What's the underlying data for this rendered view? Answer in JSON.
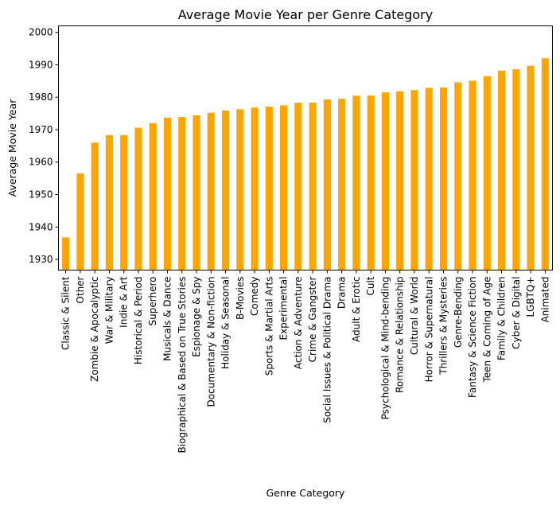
{
  "chart_data": {
    "type": "bar",
    "title": "Average Movie Year per Genre Category",
    "xlabel": "Genre Category",
    "ylabel": "Average Movie Year",
    "ylim": [
      1926.7,
      2002
    ],
    "yticks": [
      1930,
      1940,
      1950,
      1960,
      1970,
      1980,
      1990,
      2000
    ],
    "grid": false,
    "color": "#FFA500",
    "categories": [
      "Classic & Silent",
      "Other",
      "Zombie & Apocalyptic",
      "War & Military",
      "Indie & Art",
      "Historical & Period",
      "Superhero",
      "Musicals & Dance",
      "Biographical & Based on True Stories",
      "Espionage & Spy",
      "Documentary & Non-fiction",
      "Holiday & Seasonal",
      "B-Movies",
      "Comedy",
      "Sports & Martial Arts",
      "Experimental",
      "Action & Adventure",
      "Crime & Gangster",
      "Social Issues & Political Drama",
      "Drama",
      "Adult & Erotic",
      "Cult",
      "Psychological & Mind-bending",
      "Romance & Relationship",
      "Cultural & World",
      "Horror & Supernatural",
      "Thrillers & Mysteries",
      "Genre-Bending",
      "Fantasy & Science Fiction",
      "Teen & Coming of Age",
      "Family & Children",
      "Cyber & Digital",
      "LGBTQ+",
      "Animated"
    ],
    "values": [
      1936.8,
      1956.5,
      1966.0,
      1968.3,
      1968.3,
      1970.6,
      1972.0,
      1973.7,
      1973.9,
      1974.4,
      1975.2,
      1975.9,
      1976.3,
      1976.8,
      1977.1,
      1977.5,
      1978.3,
      1978.3,
      1979.3,
      1979.5,
      1980.5,
      1980.5,
      1981.5,
      1981.8,
      1982.2,
      1982.9,
      1983.0,
      1984.6,
      1985.1,
      1986.5,
      1988.2,
      1988.6,
      1989.7,
      1992.0
    ]
  }
}
